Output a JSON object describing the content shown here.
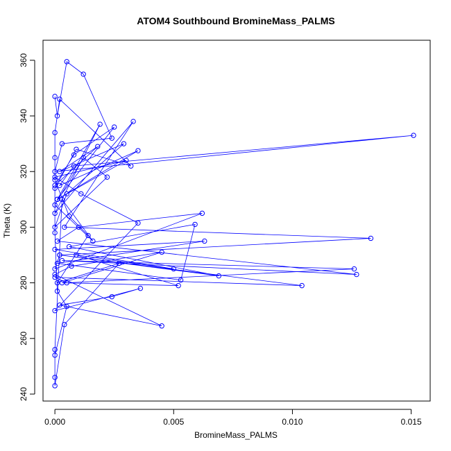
{
  "chart_data": {
    "type": "line",
    "title": "ATOM4 Southbound BromineMass_PALMS",
    "x_label": "BromineMass_PALMS",
    "y_label": "Theta (K)",
    "xlim": [
      -0.0005,
      0.0158
    ],
    "ylim": [
      237.5,
      367.2
    ],
    "xticks": [
      {
        "value": 0,
        "label": "0.000"
      },
      {
        "value": 0.005,
        "label": "0.005"
      },
      {
        "value": 0.01,
        "label": "0.010"
      },
      {
        "value": 0.015,
        "label": "0.015"
      }
    ],
    "yticks": [
      240,
      260,
      280,
      300,
      320,
      340,
      360
    ],
    "series": [
      {
        "color": "#0000ff",
        "x": [
          0.0,
          0.0001,
          0.0005,
          0.0012,
          0.0024,
          0.0003,
          0.0,
          0.0151,
          0.0008,
          0.0002,
          0.0035,
          0.0001,
          0.0019,
          0.0,
          0.0033,
          0.0004,
          0.0133,
          0.0002,
          0.0,
          0.0062,
          0.001,
          0.0001,
          0.0127,
          0.0003,
          0.0126,
          0.0005,
          0.0,
          0.0104,
          0.0002,
          0.0069,
          0.0006,
          0.0059,
          0.0053,
          0.0001,
          0.0063,
          0.0,
          0.005,
          0.0009,
          0.0052,
          0.0003,
          0.0045,
          0.0007,
          0.0,
          0.0045,
          0.0002,
          0.0024,
          0.0036,
          0.0,
          0.0035,
          0.0011,
          0.0,
          0.003,
          0.0001,
          0.0025,
          0.0008,
          0.0,
          0.0018,
          0.0002,
          0.0029,
          0.0005,
          0.0,
          0.0022,
          0.0012,
          0.0,
          0.0016,
          0.0003,
          0.0,
          0.0,
          0.0004,
          0.0027,
          0.0001,
          0.0014,
          0.0006,
          0.0,
          0.0,
          0.0,
          0.0002,
          0.0032,
          0.0009,
          0.0,
          0.0,
          0.0001,
          0.0005,
          0.0,
          0.0
        ],
        "values": [
          347,
          340,
          359.5,
          355,
          332,
          330,
          320,
          333,
          322,
          315,
          327.5,
          310,
          337,
          305,
          338,
          300,
          296,
          290,
          285,
          305,
          300,
          295,
          283,
          288,
          285,
          280,
          282,
          279,
          290,
          282.5,
          293,
          301,
          281,
          287,
          295,
          292,
          285,
          290,
          279,
          280,
          291,
          286,
          283,
          264.5,
          272,
          275,
          278,
          270,
          301.5,
          312,
          318,
          324,
          310,
          336,
          326,
          315,
          329,
          320,
          330,
          312,
          300,
          318,
          325,
          308,
          295,
          310,
          256,
          243,
          265,
          287,
          280,
          297,
          304,
          317,
          325,
          334,
          346,
          322,
          328,
          314,
          298,
          277,
          271.5,
          254,
          246
        ]
      }
    ]
  }
}
